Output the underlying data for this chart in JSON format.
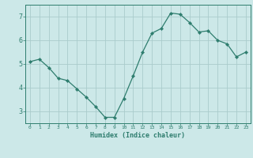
{
  "x": [
    0,
    1,
    2,
    3,
    4,
    5,
    6,
    7,
    8,
    9,
    10,
    11,
    12,
    13,
    14,
    15,
    16,
    17,
    18,
    19,
    20,
    21,
    22,
    23
  ],
  "y": [
    5.1,
    5.2,
    4.85,
    4.4,
    4.3,
    3.95,
    3.6,
    3.2,
    2.75,
    2.75,
    3.55,
    4.5,
    5.5,
    6.3,
    6.5,
    7.15,
    7.1,
    6.75,
    6.35,
    6.4,
    6.0,
    5.85,
    5.3,
    5.5
  ],
  "line_color": "#2e7d6e",
  "marker": "D",
  "marker_size": 2.2,
  "bg_color": "#cce8e8",
  "grid_color": "#aacccc",
  "axis_color": "#2e7d6e",
  "xlabel": "Humidex (Indice chaleur)",
  "ylim": [
    2.5,
    7.5
  ],
  "xlim": [
    -0.5,
    23.5
  ],
  "yticks": [
    3,
    4,
    5,
    6,
    7
  ],
  "xticks": [
    0,
    1,
    2,
    3,
    4,
    5,
    6,
    7,
    8,
    9,
    10,
    11,
    12,
    13,
    14,
    15,
    16,
    17,
    18,
    19,
    20,
    21,
    22,
    23
  ]
}
